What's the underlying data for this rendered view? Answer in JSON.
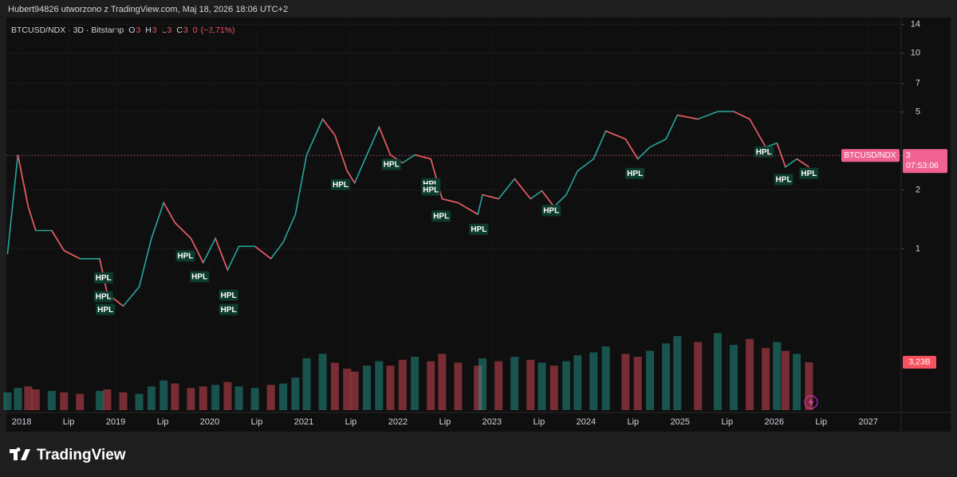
{
  "header": "Hubert94826 utworzono z TradingView.com, Maj 18, 2026 18:06 UTC+2",
  "footer": "TradingView",
  "chart_data": {
    "type": "line",
    "legend_symbol": "BTCUSD/NDX · 3D · Bitstamp",
    "ohlc": [
      {
        "label": "O",
        "value": 3
      },
      {
        "label": "H",
        "value": 3
      },
      {
        "label": "L",
        "value": 3
      },
      {
        "label": "C",
        "value": 3
      }
    ],
    "change": 0,
    "change_pct_label": "(−2,71%)",
    "log_scale": true,
    "grid": true,
    "x": [
      2017.85,
      2017.96,
      2018.07,
      2018.15,
      2018.32,
      2018.45,
      2018.62,
      2018.83,
      2018.91,
      2019.08,
      2019.25,
      2019.38,
      2019.51,
      2019.63,
      2019.8,
      2019.93,
      2020.06,
      2020.19,
      2020.31,
      2020.48,
      2020.65,
      2020.78,
      2020.91,
      2021.03,
      2021.2,
      2021.33,
      2021.46,
      2021.54,
      2021.67,
      2021.8,
      2021.92,
      2022.05,
      2022.18,
      2022.35,
      2022.47,
      2022.64,
      2022.85,
      2022.9,
      2023.07,
      2023.24,
      2023.41,
      2023.53,
      2023.66,
      2023.79,
      2023.91,
      2024.08,
      2024.21,
      2024.42,
      2024.55,
      2024.68,
      2024.85,
      2024.97,
      2025.19,
      2025.4,
      2025.57,
      2025.74,
      2025.91,
      2026.03,
      2026.12,
      2026.24,
      2026.37
    ],
    "series": [
      {
        "name": "BTCUSD/NDX",
        "color": "#26a69a",
        "down_color": "#f7525f",
        "values": [
          0.94,
          3.02,
          1.64,
          1.24,
          1.24,
          0.98,
          0.89,
          0.89,
          0.59,
          0.51,
          0.64,
          1.13,
          1.72,
          1.36,
          1.13,
          0.85,
          1.13,
          0.78,
          1.03,
          1.03,
          0.89,
          1.08,
          1.5,
          3.02,
          4.6,
          3.81,
          2.5,
          2.17,
          3.02,
          4.19,
          3.02,
          2.75,
          3.02,
          2.88,
          1.8,
          1.72,
          1.5,
          1.89,
          1.8,
          2.28,
          1.8,
          1.98,
          1.64,
          1.89,
          2.5,
          2.88,
          4.0,
          3.64,
          2.88,
          3.31,
          3.64,
          4.82,
          4.6,
          5.03,
          5.03,
          4.6,
          3.31,
          3.47,
          2.62,
          2.88,
          2.62
        ]
      },
      {
        "name": "Volume",
        "axis": "y2",
        "color": "#26a69a",
        "down_color": "#f7525f",
        "values": [
          1.2,
          1.5,
          1.6,
          1.4,
          1.3,
          1.2,
          1.1,
          1.3,
          1.4,
          1.2,
          1.1,
          1.6,
          2.0,
          1.8,
          1.5,
          1.6,
          1.7,
          1.9,
          1.6,
          1.5,
          1.7,
          1.8,
          2.2,
          3.5,
          3.8,
          3.2,
          2.8,
          2.6,
          3.0,
          3.3,
          3.0,
          3.4,
          3.6,
          3.3,
          3.8,
          3.2,
          3.0,
          3.5,
          3.3,
          3.6,
          3.4,
          3.2,
          3.0,
          3.3,
          3.7,
          3.9,
          4.3,
          3.8,
          3.6,
          4.0,
          4.5,
          5.0,
          4.6,
          5.2,
          4.4,
          4.8,
          4.2,
          4.6,
          4.0,
          3.8,
          3.23
        ]
      }
    ],
    "last_price": {
      "value": 3,
      "symbol": "BTCUSD/NDX",
      "countdown": "07:53:06",
      "color": "#f06292"
    },
    "last_volume": {
      "value": 3.23,
      "label": "3,23B",
      "color": "#f7525f"
    },
    "markers": [
      {
        "x": 2018.87,
        "y": 0.71,
        "label": "HPL"
      },
      {
        "x": 2018.87,
        "y": 0.57,
        "label": "HPL"
      },
      {
        "x": 2018.89,
        "y": 0.49,
        "label": "HPL"
      },
      {
        "x": 2019.74,
        "y": 0.92,
        "label": "HPL"
      },
      {
        "x": 2019.89,
        "y": 0.72,
        "label": "HPL"
      },
      {
        "x": 2020.2,
        "y": 0.58,
        "label": "HPL"
      },
      {
        "x": 2020.2,
        "y": 0.49,
        "label": "HPL"
      },
      {
        "x": 2021.39,
        "y": 2.13,
        "label": "HPL"
      },
      {
        "x": 2021.93,
        "y": 2.7,
        "label": "HPL"
      },
      {
        "x": 2022.35,
        "y": 2.15,
        "label": "HPL"
      },
      {
        "x": 2022.35,
        "y": 2.0,
        "label": "HPL"
      },
      {
        "x": 2022.46,
        "y": 1.47,
        "label": "HPL"
      },
      {
        "x": 2022.86,
        "y": 1.26,
        "label": "HPL"
      },
      {
        "x": 2023.63,
        "y": 1.57,
        "label": "HPL"
      },
      {
        "x": 2024.52,
        "y": 2.43,
        "label": "HPL"
      },
      {
        "x": 2025.89,
        "y": 3.13,
        "label": "HPL"
      },
      {
        "x": 2026.1,
        "y": 2.26,
        "label": "HPL"
      },
      {
        "x": 2026.37,
        "y": 2.43,
        "label": "HPL"
      }
    ],
    "xlim": [
      2017.77,
      2027.35
    ],
    "xticks": [
      2018,
      {
        "value": 2018.5,
        "label": "Lip"
      },
      2019,
      {
        "value": 2019.5,
        "label": "Lip"
      },
      2020,
      {
        "value": 2020.5,
        "label": "Lip"
      },
      2021,
      {
        "value": 2021.5,
        "label": "Lip"
      },
      2022,
      {
        "value": 2022.5,
        "label": "Lip"
      },
      2023,
      {
        "value": 2023.5,
        "label": "Lip"
      },
      2024,
      {
        "value": 2024.5,
        "label": "Lip"
      },
      2025,
      {
        "value": 2025.5,
        "label": "Lip"
      },
      2026,
      {
        "value": 2026.5,
        "label": "Lip"
      },
      2027
    ],
    "ylim": [
      0.15,
      15.2
    ],
    "yticks": [
      1,
      2,
      3,
      5,
      7,
      10,
      14
    ],
    "y2lim": [
      0,
      26.5
    ]
  }
}
